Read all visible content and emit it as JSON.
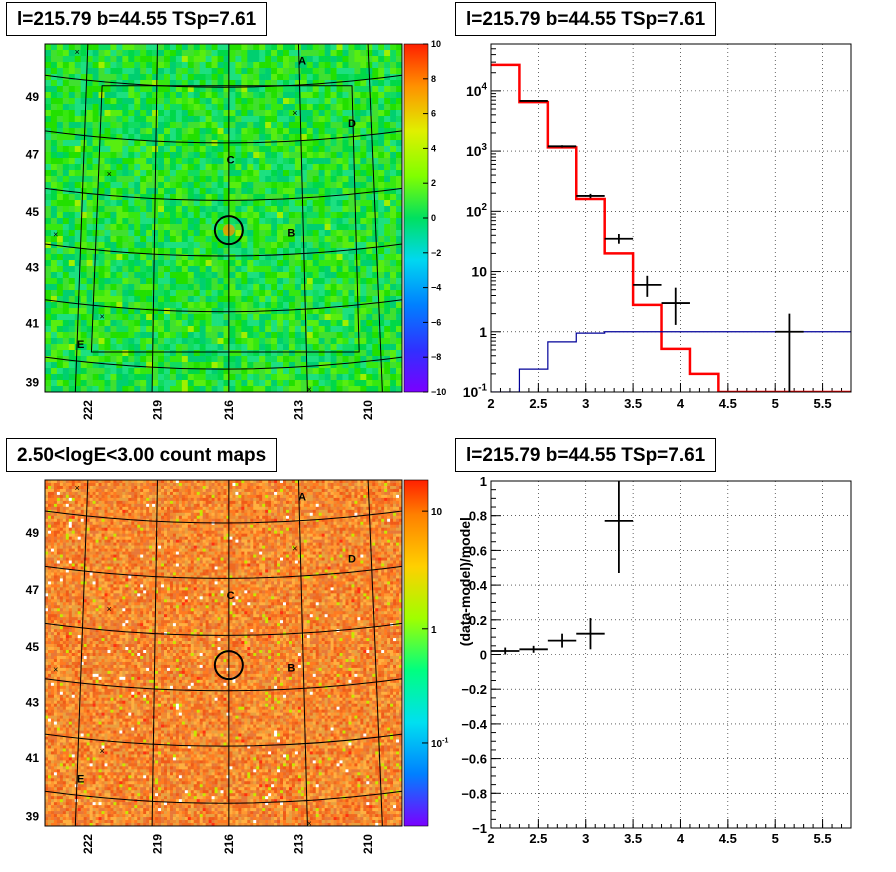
{
  "panels": {
    "top_left_title": "l=215.79 b=44.55 TSp=7.61",
    "top_right_title": "l=215.79 b=44.55 TSp=7.61",
    "bottom_left_title": "2.50<logE<3.00 count maps",
    "bottom_right_title": "l=215.79 b=44.55 TSp=7.61"
  },
  "colors": {
    "data": "#000000",
    "model": "#ff0000",
    "background_model": "#000099",
    "grid": "#000000"
  },
  "chart_data": [
    {
      "type": "heatmap",
      "name": "residual TS map",
      "title": "l=215.79 b=44.55 TSp=7.61",
      "y_ticks": [
        "39",
        "41",
        "43",
        "45",
        "47",
        "49"
      ],
      "x_ticks": [
        "222",
        "219",
        "216",
        "213",
        "210"
      ],
      "colorbar": {
        "range": [
          -10,
          10
        ],
        "ticks": [
          "10",
          "8",
          "6",
          "4",
          "2",
          "0",
          "−2",
          "−4",
          "−6",
          "−8",
          "−10"
        ]
      },
      "sources": [
        "A",
        "B",
        "C",
        "D",
        "E"
      ],
      "circle_center": {
        "l": 215.79,
        "b": 44.55
      }
    },
    {
      "type": "line",
      "title": "l=215.79 b=44.55 TSp=7.61",
      "xlim": [
        2,
        5.8
      ],
      "x_ticks": [
        "2",
        "2.5",
        "3",
        "3.5",
        "4",
        "4.5",
        "5",
        "5.5"
      ],
      "y_scale": "log",
      "ylim": [
        0.1,
        60000
      ],
      "y_ticks": [
        "10^-1",
        "1",
        "10",
        "10^2",
        "10^3",
        "10^4"
      ],
      "grid": true,
      "series": [
        {
          "role": "model",
          "style": "step",
          "edges": [
            2.0,
            2.3,
            2.6,
            2.9,
            3.2,
            3.5,
            3.8,
            4.1,
            4.4,
            5.9
          ],
          "values": [
            27000,
            6500,
            1150,
            160,
            20,
            2.8,
            0.52,
            0.2,
            0.1
          ]
        },
        {
          "role": "background",
          "style": "step",
          "edges": [
            2.0,
            2.3,
            2.6,
            2.9,
            3.2,
            5.9
          ],
          "values": [
            0.1,
            0.24,
            0.68,
            0.95,
            1.0
          ]
        },
        {
          "role": "data",
          "style": "errorbar",
          "points": [
            {
              "x": 2.45,
              "y": 6800,
              "xerr": 0.15,
              "ylo": 6700,
              "yhi": 6900
            },
            {
              "x": 2.75,
              "y": 1200,
              "xerr": 0.15,
              "ylo": 1150,
              "yhi": 1250
            },
            {
              "x": 3.05,
              "y": 180,
              "xerr": 0.15,
              "ylo": 165,
              "yhi": 195
            },
            {
              "x": 3.35,
              "y": 35,
              "xerr": 0.15,
              "ylo": 29,
              "yhi": 42
            },
            {
              "x": 3.65,
              "y": 6,
              "xerr": 0.15,
              "ylo": 3.8,
              "yhi": 8.5
            },
            {
              "x": 3.95,
              "y": 3,
              "xerr": 0.15,
              "ylo": 1.3,
              "yhi": 5.4
            },
            {
              "x": 5.15,
              "y": 1,
              "xerr": 0.15,
              "ylo": 0.1,
              "yhi": 2.0
            }
          ]
        }
      ]
    },
    {
      "type": "heatmap",
      "name": "count map",
      "title": "2.50<logE<3.00 count maps",
      "y_ticks": [
        "39",
        "41",
        "43",
        "45",
        "47",
        "49"
      ],
      "x_ticks": [
        "222",
        "219",
        "216",
        "213",
        "210"
      ],
      "colorbar": {
        "scale": "log",
        "ticks": [
          "10",
          "1",
          "10^-1"
        ]
      },
      "sources": [
        "A",
        "B",
        "C",
        "D",
        "E"
      ]
    },
    {
      "type": "scatter",
      "title": "l=215.79 b=44.55 TSp=7.61",
      "ylabel": "(data-model)/model",
      "xlim": [
        2,
        5.8
      ],
      "ylim": [
        -1,
        1
      ],
      "x_ticks": [
        "2",
        "2.5",
        "3",
        "3.5",
        "4",
        "4.5",
        "5",
        "5.5"
      ],
      "y_ticks": [
        "1",
        "0.8",
        "0.6",
        "0.4",
        "0.2",
        "0",
        "−0.2",
        "−0.4",
        "−0.6",
        "−0.8",
        "−1"
      ],
      "grid": true,
      "points": [
        {
          "x": 2.15,
          "y": 0.02,
          "xerr": 0.15,
          "ylo": 0.0,
          "yhi": 0.04
        },
        {
          "x": 2.45,
          "y": 0.03,
          "xerr": 0.15,
          "ylo": 0.01,
          "yhi": 0.05
        },
        {
          "x": 2.75,
          "y": 0.08,
          "xerr": 0.15,
          "ylo": 0.04,
          "yhi": 0.12
        },
        {
          "x": 3.05,
          "y": 0.12,
          "xerr": 0.15,
          "ylo": 0.03,
          "yhi": 0.21
        },
        {
          "x": 3.35,
          "y": 0.77,
          "xerr": 0.15,
          "ylo": 0.47,
          "yhi": 1.07
        }
      ]
    }
  ]
}
